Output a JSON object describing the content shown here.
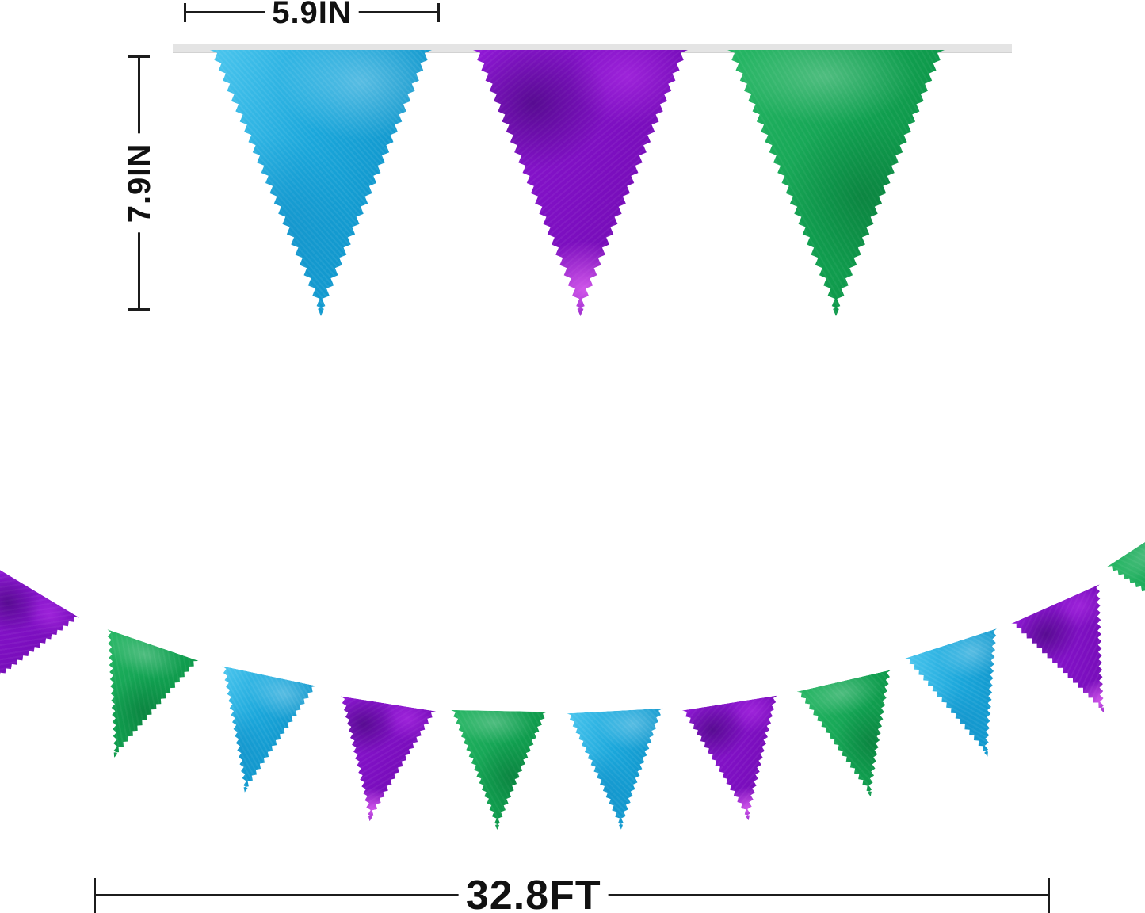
{
  "product_diagram": {
    "type": "pennant-banner-dimension-diagram",
    "dimensions": {
      "flag_width_label": "5.9IN",
      "flag_height_label": "7.9IN",
      "banner_length_label": "32.8FT"
    },
    "colors": {
      "blue": "#1ba7db",
      "blue_highlight": "#4cc6ee",
      "blue_dark": "#0e93c9",
      "purple": "#7d0fc1",
      "purple_highlight": "#9018d6",
      "purple_dark": "#6a09a8",
      "green": "#11a151",
      "green_highlight": "#27b765",
      "green_dark": "#0b8a40",
      "string": "#e4e4e4",
      "annotation": "#1c1c1c"
    },
    "top_row_flags": [
      "blue",
      "purple",
      "green"
    ],
    "garland_flags": [
      "purple",
      "green",
      "blue",
      "purple",
      "green",
      "blue",
      "purple",
      "green",
      "blue",
      "purple",
      "green"
    ]
  }
}
